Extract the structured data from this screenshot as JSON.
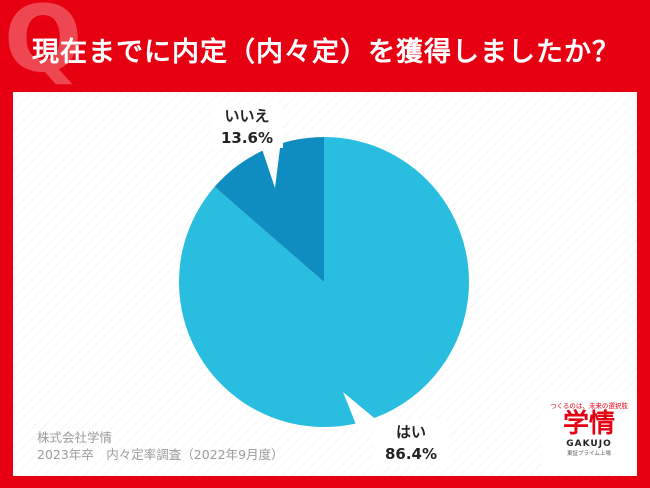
{
  "header": {
    "title": "現在までに内定（内々定）を獲得しましたか？",
    "q_mark": "Q"
  },
  "chart_data": {
    "type": "pie",
    "title": "現在までに内定（内々定）を獲得しましたか？",
    "slices": [
      {
        "label": "はい",
        "value": 86.4,
        "display": "86.4%",
        "color": "#29bde0"
      },
      {
        "label": "いいえ",
        "value": 13.6,
        "display": "13.6%",
        "color": "#0f8dc0"
      }
    ]
  },
  "footer": {
    "company": "株式会社学情",
    "survey": "2023年卒　内々定率調査（2022年9月度）"
  },
  "logo": {
    "tagline": "つくるのは、未来の選択肢",
    "name": "学情",
    "name_en": "GAKUJO",
    "sub": "東証プライム上場"
  }
}
